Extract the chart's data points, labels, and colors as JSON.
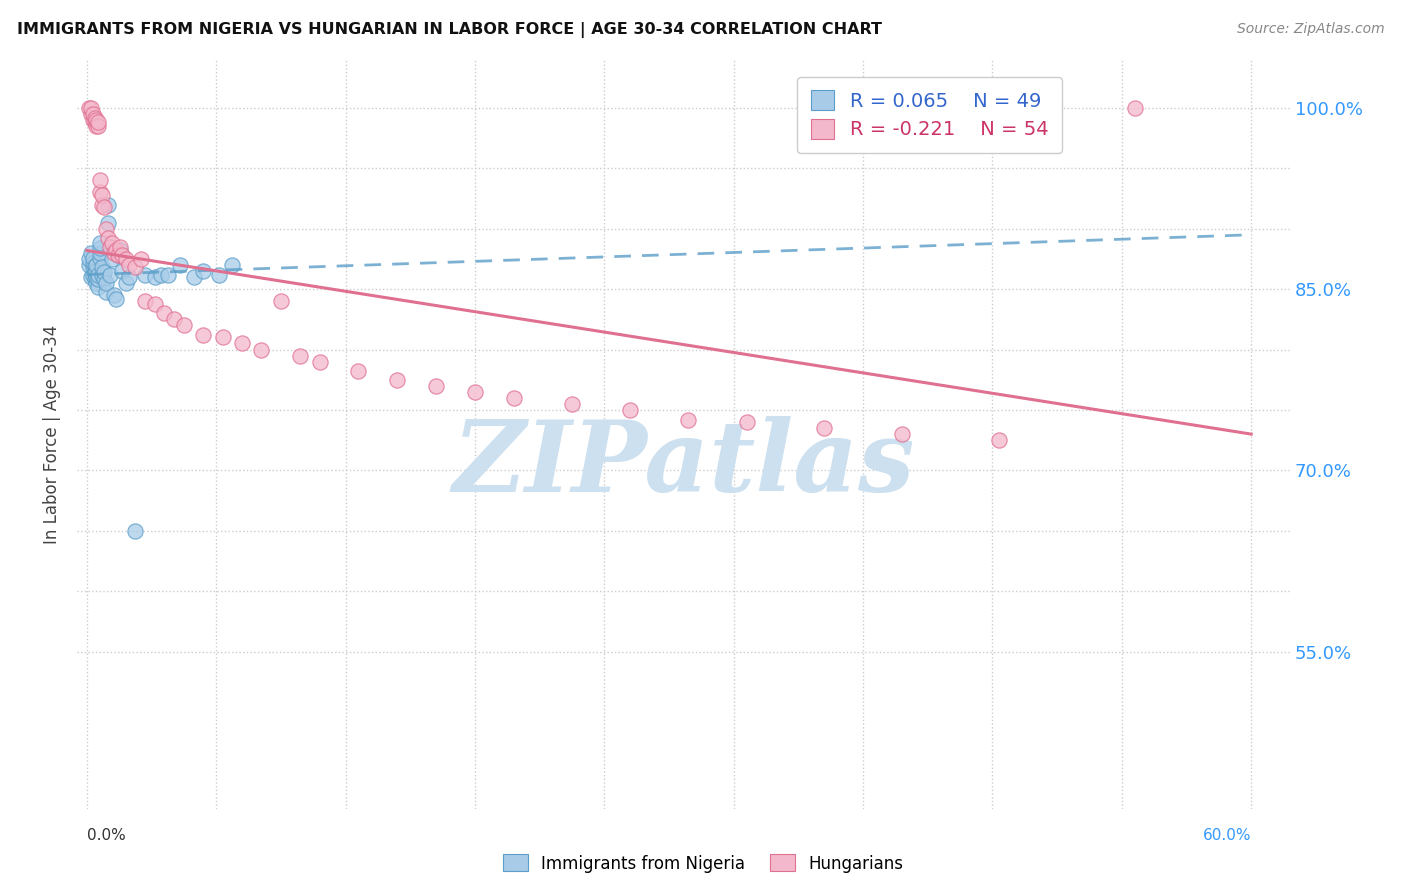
{
  "title": "IMMIGRANTS FROM NIGERIA VS HUNGARIAN IN LABOR FORCE | AGE 30-34 CORRELATION CHART",
  "source": "Source: ZipAtlas.com",
  "ylabel": "In Labor Force | Age 30-34",
  "ylim": [
    0.42,
    1.04
  ],
  "xlim": [
    -0.005,
    0.62
  ],
  "legend1_r": "0.065",
  "legend1_n": "49",
  "legend2_r": "-0.221",
  "legend2_n": "54",
  "blue_color": "#a8cce8",
  "pink_color": "#f4b8cc",
  "blue_edge_color": "#5b9ec9",
  "pink_edge_color": "#e07090",
  "blue_line_color": "#5b9ec9",
  "pink_line_color": "#e07090",
  "nigeria_x": [
    0.001,
    0.001,
    0.002,
    0.002,
    0.003,
    0.003,
    0.003,
    0.003,
    0.004,
    0.004,
    0.004,
    0.005,
    0.005,
    0.005,
    0.005,
    0.006,
    0.006,
    0.006,
    0.007,
    0.007,
    0.007,
    0.007,
    0.008,
    0.008,
    0.009,
    0.009,
    0.01,
    0.01,
    0.011,
    0.011,
    0.012,
    0.013,
    0.014,
    0.015,
    0.016,
    0.017,
    0.018,
    0.02,
    0.022,
    0.025,
    0.03,
    0.035,
    0.038,
    0.042,
    0.048,
    0.055,
    0.06,
    0.068,
    0.075
  ],
  "nigeria_y": [
    0.87,
    0.875,
    0.86,
    0.88,
    0.862,
    0.868,
    0.872,
    0.876,
    0.858,
    0.865,
    0.869,
    0.855,
    0.86,
    0.865,
    0.87,
    0.852,
    0.858,
    0.862,
    0.876,
    0.88,
    0.884,
    0.888,
    0.862,
    0.868,
    0.858,
    0.864,
    0.848,
    0.855,
    0.92,
    0.905,
    0.862,
    0.875,
    0.845,
    0.842,
    0.878,
    0.882,
    0.865,
    0.855,
    0.86,
    0.65,
    0.862,
    0.86,
    0.862,
    0.862,
    0.87,
    0.86,
    0.865,
    0.862,
    0.87
  ],
  "hungarian_x": [
    0.001,
    0.002,
    0.002,
    0.003,
    0.003,
    0.004,
    0.004,
    0.005,
    0.005,
    0.006,
    0.006,
    0.007,
    0.007,
    0.008,
    0.008,
    0.009,
    0.01,
    0.011,
    0.012,
    0.013,
    0.014,
    0.015,
    0.016,
    0.017,
    0.018,
    0.02,
    0.022,
    0.025,
    0.028,
    0.03,
    0.035,
    0.04,
    0.045,
    0.05,
    0.06,
    0.07,
    0.08,
    0.09,
    0.1,
    0.11,
    0.12,
    0.14,
    0.16,
    0.18,
    0.2,
    0.22,
    0.25,
    0.28,
    0.31,
    0.34,
    0.38,
    0.42,
    0.47,
    0.54
  ],
  "hungarian_y": [
    1.0,
    0.995,
    1.0,
    0.99,
    0.995,
    0.988,
    0.992,
    0.985,
    0.99,
    0.985,
    0.988,
    0.93,
    0.94,
    0.92,
    0.928,
    0.918,
    0.9,
    0.892,
    0.885,
    0.888,
    0.88,
    0.882,
    0.878,
    0.885,
    0.878,
    0.875,
    0.87,
    0.868,
    0.875,
    0.84,
    0.838,
    0.83,
    0.825,
    0.82,
    0.812,
    0.81,
    0.805,
    0.8,
    0.84,
    0.795,
    0.79,
    0.782,
    0.775,
    0.77,
    0.765,
    0.76,
    0.755,
    0.75,
    0.742,
    0.74,
    0.735,
    0.73,
    0.725,
    1.0
  ],
  "watermark_text": "ZIPatlas",
  "watermark_color": "#cce0f0"
}
